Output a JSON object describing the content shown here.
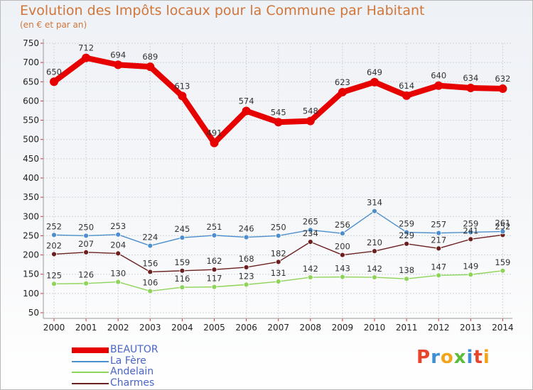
{
  "title": "Evolution des Impôts locaux pour la Commune par Habitant",
  "subtitle": "(en € et par an)",
  "logo": {
    "text": "Proxiti",
    "letters": [
      "P",
      "r",
      "o",
      "x",
      "i",
      "t",
      "i"
    ],
    "colors": [
      "#e8452a",
      "#3c8fd6",
      "#f2a51c",
      "#5bbd3a",
      "#3c8fd6",
      "#e8452a",
      "#f2a51c"
    ]
  },
  "chart_data": {
    "type": "line",
    "title": "Evolution des Impôts locaux pour la Commune par Habitant",
    "subtitle": "(en € et par an)",
    "xlabel": "",
    "ylabel": "",
    "x": [
      "2000",
      "2001",
      "2002",
      "2003",
      "2004",
      "2005",
      "2006",
      "2007",
      "2008",
      "2009",
      "2010",
      "2011",
      "2012",
      "2013",
      "2014"
    ],
    "ylim": [
      50,
      750
    ],
    "yticks": [
      "50",
      "100",
      "150",
      "200",
      "250",
      "300",
      "350",
      "400",
      "450",
      "500",
      "550",
      "600",
      "650",
      "700",
      "750"
    ],
    "grid": true,
    "legend_position": "bottom-left",
    "series": [
      {
        "name": "BEAUTOR",
        "color": "#e60000",
        "values": [
          650,
          712,
          694,
          689,
          613,
          491,
          574,
          545,
          548,
          623,
          649,
          614,
          640,
          634,
          632
        ],
        "labels": [
          "650",
          "712",
          "694",
          "689",
          "613",
          "491",
          "574",
          "545",
          "548",
          "623",
          "649",
          "614",
          "640",
          "634",
          "632"
        ]
      },
      {
        "name": "La Fère",
        "color": "#4d8fcc",
        "values": [
          252,
          250,
          253,
          224,
          245,
          251,
          246,
          250,
          265,
          256,
          314,
          259,
          257,
          259,
          261
        ],
        "labels": [
          "252",
          "250",
          "253",
          "224",
          "245",
          "251",
          "246",
          "250",
          "265",
          "256",
          "314",
          "259",
          "257",
          "259",
          "261"
        ]
      },
      {
        "name": "Andelain",
        "color": "#8ed45a",
        "values": [
          125,
          126,
          130,
          106,
          116,
          117,
          123,
          131,
          142,
          143,
          142,
          138,
          147,
          149,
          159
        ],
        "labels": [
          "125",
          "126",
          "130",
          "106",
          "116",
          "117",
          "123",
          "131",
          "142",
          "143",
          "142",
          "138",
          "147",
          "149",
          "159"
        ]
      },
      {
        "name": "Charmes",
        "color": "#6b1f1f",
        "values": [
          202,
          207,
          204,
          156,
          159,
          162,
          168,
          182,
          234,
          200,
          210,
          229,
          217,
          241,
          252
        ],
        "labels": [
          "202",
          "207",
          "204",
          "156",
          "159",
          "162",
          "168",
          "182",
          "234",
          "200",
          "210",
          "229",
          "217",
          "241",
          "252"
        ]
      }
    ]
  }
}
